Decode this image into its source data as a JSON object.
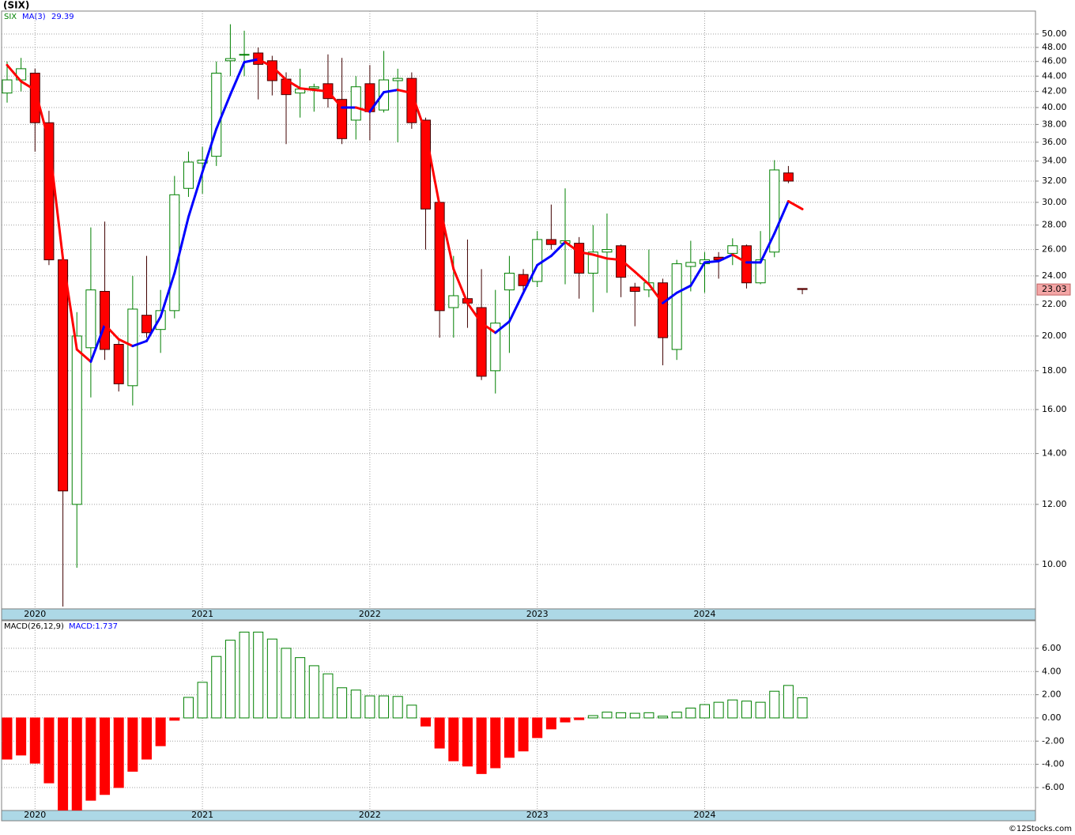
{
  "chart_data": [
    {
      "type": "candlestick",
      "title": "(SIX)",
      "name": "SIX",
      "categories": [
        null,
        null,
        "2020",
        null,
        null,
        null,
        null,
        null,
        null,
        null,
        null,
        null,
        null,
        null,
        "2021",
        null,
        null,
        null,
        null,
        null,
        null,
        null,
        null,
        null,
        null,
        null,
        "2022",
        null,
        null,
        null,
        null,
        null,
        null,
        null,
        null,
        null,
        null,
        null,
        "2023",
        null,
        null,
        null,
        null,
        null,
        null,
        null,
        null,
        null,
        null,
        null,
        "2024",
        null,
        null,
        null,
        null,
        null,
        null,
        null
      ],
      "open": [
        41.8,
        43.5,
        44.4,
        38.2,
        25.2,
        12.0,
        19.3,
        22.9,
        19.5,
        17.2,
        21.3,
        20.4,
        21.6,
        31.3,
        33.8,
        34.5,
        46.1,
        46.9,
        47.2,
        46.1,
        43.6,
        41.8,
        42.4,
        43.0,
        41.0,
        38.5,
        43.0,
        39.7,
        43.4,
        43.7,
        38.5,
        30.0,
        21.8,
        22.4,
        21.8,
        18.0,
        23.0,
        24.1,
        23.6,
        26.8,
        26.5,
        26.5,
        24.2,
        25.8,
        26.3,
        23.2,
        23.0,
        23.5,
        19.2,
        24.7,
        24.9,
        25.4,
        25.7,
        26.3,
        23.5,
        25.8,
        32.8,
        23.1
      ],
      "high": [
        46.0,
        46.5,
        45.0,
        39.6,
        25.5,
        21.5,
        27.8,
        28.3,
        19.8,
        24.0,
        25.5,
        23.0,
        32.5,
        35.0,
        35.5,
        46.0,
        51.5,
        50.5,
        48.0,
        46.8,
        44.5,
        45.0,
        43.0,
        47.0,
        46.5,
        44.0,
        45.5,
        47.5,
        45.0,
        44.5,
        38.8,
        30.1,
        25.5,
        26.8,
        24.5,
        23.0,
        25.5,
        24.5,
        27.5,
        29.8,
        31.3,
        27.0,
        28.0,
        29.0,
        26.4,
        23.5,
        26.0,
        23.8,
        25.2,
        26.7,
        25.8,
        25.8,
        26.9,
        26.4,
        27.5,
        34.1,
        33.5,
        23.1
      ],
      "low": [
        40.6,
        42.0,
        35.0,
        24.8,
        8.8,
        9.9,
        16.6,
        18.6,
        16.9,
        16.2,
        19.9,
        19.0,
        21.1,
        30.5,
        30.8,
        33.5,
        44.0,
        44.0,
        41.0,
        41.5,
        35.8,
        38.8,
        39.5,
        40.0,
        35.8,
        36.3,
        36.2,
        39.4,
        36.0,
        37.5,
        26.0,
        19.9,
        19.9,
        20.5,
        17.5,
        16.8,
        19.0,
        22.8,
        23.2,
        26.0,
        23.4,
        22.4,
        21.5,
        22.8,
        22.5,
        20.6,
        22.5,
        18.3,
        18.6,
        22.9,
        22.8,
        23.8,
        24.8,
        23.1,
        23.4,
        25.4,
        31.8,
        22.7
      ],
      "close": [
        43.5,
        45.0,
        38.2,
        25.2,
        12.5,
        20.0,
        23.0,
        19.2,
        17.3,
        21.7,
        20.2,
        21.6,
        30.7,
        33.9,
        34.1,
        44.4,
        46.4,
        47.0,
        45.6,
        43.4,
        41.6,
        42.3,
        42.6,
        41.1,
        36.4,
        42.6,
        39.5,
        43.5,
        43.7,
        38.2,
        29.4,
        21.6,
        22.6,
        22.1,
        17.7,
        20.8,
        24.2,
        23.3,
        26.8,
        26.4,
        26.7,
        24.2,
        25.8,
        26.0,
        23.9,
        22.9,
        23.5,
        19.9,
        24.9,
        25.0,
        25.2,
        25.2,
        26.3,
        23.5,
        25.2,
        33.1,
        32.0,
        23.03
      ],
      "up_color": "#008000",
      "down_color": "#ff0000",
      "wick_down_color": "#400000",
      "last_price_color": "#f4a6a6",
      "ma": {
        "name": "MA(3)",
        "color": "#0000ff",
        "down_color": "#ff0000",
        "values": [
          45.5,
          43.3,
          42.2,
          36.1,
          25.3,
          19.2,
          18.5,
          20.7,
          19.8,
          19.4,
          19.7,
          21.2,
          24.2,
          28.7,
          32.9,
          37.5,
          41.6,
          45.9,
          46.3,
          45.3,
          43.5,
          42.4,
          42.2,
          42.0,
          40.0,
          40.0,
          39.5,
          41.9,
          42.2,
          41.8,
          37.1,
          29.7,
          24.5,
          22.1,
          20.8,
          20.2,
          20.9,
          22.8,
          24.8,
          25.5,
          26.6,
          25.8,
          25.6,
          25.3,
          25.2,
          24.3,
          23.4,
          22.1,
          22.8,
          23.3,
          25.0,
          25.1,
          25.6,
          25.0,
          25.0,
          27.3,
          30.1,
          29.39
        ]
      },
      "log_scale": true,
      "ylim": [
        8.74,
        53.6
      ],
      "yticks": [
        {
          "value": 10,
          "label": "10.00"
        },
        {
          "value": 12,
          "label": "12.00"
        },
        {
          "value": 14,
          "label": "14.00"
        },
        {
          "value": 16,
          "label": "16.00"
        },
        {
          "value": 18,
          "label": "18.00"
        },
        {
          "value": 20,
          "label": "20.00"
        },
        {
          "value": 22,
          "label": "22.00"
        },
        {
          "value": 24,
          "label": "24.00"
        },
        {
          "value": 26,
          "label": "26.00"
        },
        {
          "value": 28,
          "label": "28.00"
        },
        {
          "value": 30,
          "label": "30.00"
        },
        {
          "value": 32,
          "label": "32.00"
        },
        {
          "value": 34,
          "label": "34.00"
        },
        {
          "value": 36,
          "label": "36.00"
        },
        {
          "value": 38,
          "label": "38.00"
        },
        {
          "value": 40,
          "label": "40.00"
        },
        {
          "value": 42,
          "label": "42.00"
        },
        {
          "value": 44,
          "label": "44.00"
        },
        {
          "value": 46,
          "label": "46.00"
        },
        {
          "value": 48,
          "label": "48.00"
        },
        {
          "value": 50,
          "label": "50.00"
        }
      ],
      "grid": true
    },
    {
      "type": "bar",
      "title": "MACD(26,12,9)",
      "series": [
        {
          "name": "MACD:",
          "color": "#0000ff",
          "pos_color": "#008000",
          "neg_color": "#ff0000",
          "values": [
            -3.55,
            -3.2,
            -3.9,
            -5.6,
            -8.2,
            -8.1,
            -7.1,
            -6.6,
            -6.0,
            -4.6,
            -3.55,
            -2.4,
            -0.2,
            1.77,
            3.07,
            5.3,
            6.7,
            7.4,
            7.4,
            6.8,
            6.0,
            5.2,
            4.5,
            3.8,
            2.6,
            2.4,
            1.9,
            1.9,
            1.85,
            1.1,
            -0.7,
            -2.6,
            -3.7,
            -4.15,
            -4.8,
            -4.3,
            -3.4,
            -2.85,
            -1.7,
            -0.95,
            -0.35,
            -0.15,
            0.2,
            0.5,
            0.45,
            0.4,
            0.45,
            0.15,
            0.5,
            0.85,
            1.15,
            1.35,
            1.55,
            1.45,
            1.35,
            2.3,
            2.8,
            1.737
          ]
        }
      ],
      "ylim": [
        -7.98,
        8.38
      ],
      "yticks": [
        {
          "value": 6,
          "label": "6.00"
        },
        {
          "value": 4,
          "label": "4.00"
        },
        {
          "value": 2,
          "label": "2.00"
        },
        {
          "value": 0,
          "label": "0.00"
        },
        {
          "value": -2,
          "label": "-2.00"
        },
        {
          "value": -4,
          "label": "-4.00"
        },
        {
          "value": -6,
          "label": "-6.00"
        }
      ],
      "grid": true
    }
  ],
  "footer": "©12Stocks.com"
}
